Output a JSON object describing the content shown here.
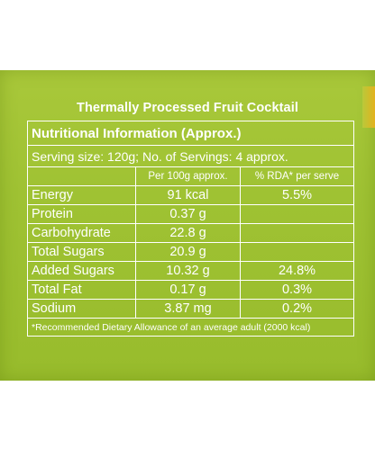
{
  "label": {
    "title": "Thermally Processed Fruit Cocktail",
    "heading": "Nutritional Information (Approx.)",
    "serving": "Serving size: 120g; No. of Servings: 4 approx.",
    "columns": {
      "per100g": "Per 100g approx.",
      "rda": "% RDA* per serve"
    },
    "rows": [
      {
        "name": "Energy",
        "per100g": "91 kcal",
        "rda": "5.5%"
      },
      {
        "name": "Protein",
        "per100g": "0.37 g",
        "rda": ""
      },
      {
        "name": "Carbohydrate",
        "per100g": "22.8 g",
        "rda": ""
      },
      {
        "name": "Total Sugars",
        "per100g": "20.9 g",
        "rda": ""
      },
      {
        "name": "Added Sugars",
        "per100g": "10.32 g",
        "rda": "24.8%"
      },
      {
        "name": "Total Fat",
        "per100g": "0.17 g",
        "rda": "0.3%"
      },
      {
        "name": "Sodium",
        "per100g": "3.87 mg",
        "rda": "0.2%"
      }
    ],
    "footnote": "*Recommended Dietary Allowance of an average adult (2000 kcal)"
  },
  "colors": {
    "panel": "#9fc233",
    "text": "#ffffff"
  }
}
